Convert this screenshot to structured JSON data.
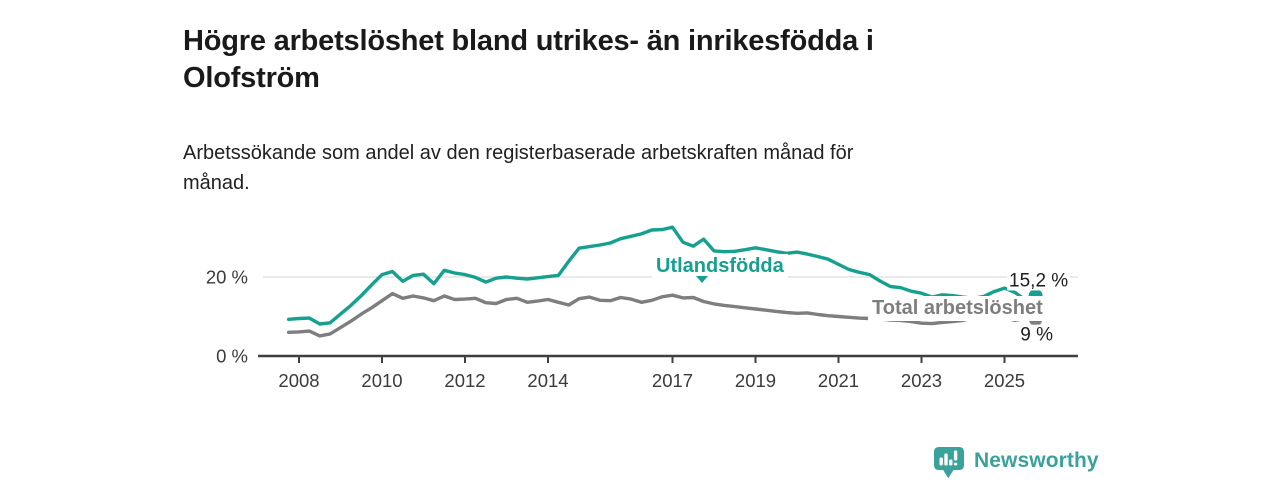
{
  "header": {
    "title_lines": [
      "Högre arbetslöshet bland utrikes- än inrikesfödda i",
      "Olofström"
    ],
    "subtitle_lines": [
      "Arbetssökande som andel av den registerbaserade arbetskraften månad för",
      "månad."
    ]
  },
  "chart_data": {
    "type": "line",
    "unit": "%",
    "x": [
      2007.75,
      2008.0,
      2008.25,
      2008.5,
      2008.75,
      2009.0,
      2009.25,
      2009.5,
      2009.75,
      2010.0,
      2010.25,
      2010.5,
      2010.75,
      2011.0,
      2011.25,
      2011.5,
      2011.75,
      2012.0,
      2012.25,
      2012.5,
      2012.75,
      2013.0,
      2013.25,
      2013.5,
      2013.75,
      2014.0,
      2014.25,
      2014.5,
      2014.75,
      2015.0,
      2015.25,
      2015.5,
      2015.75,
      2016.0,
      2016.25,
      2016.5,
      2016.75,
      2017.0,
      2017.25,
      2017.5,
      2017.75,
      2018.0,
      2018.25,
      2018.5,
      2018.75,
      2019.0,
      2019.25,
      2019.5,
      2019.75,
      2020.0,
      2020.25,
      2020.5,
      2020.75,
      2021.0,
      2021.25,
      2021.5,
      2021.75,
      2022.0,
      2022.25,
      2022.5,
      2022.75,
      2023.0,
      2023.25,
      2023.5,
      2023.75,
      2024.0,
      2024.25,
      2024.5,
      2024.75,
      2025.0,
      2025.25,
      2025.5,
      2025.75
    ],
    "series": [
      {
        "name": "Utlandsfödda",
        "color": "#16a090",
        "end_value_label": "15,2 %",
        "end_value": 15.2,
        "values": [
          9.3,
          9.5,
          9.6,
          8.1,
          8.4,
          10.6,
          12.8,
          15.3,
          18.0,
          20.6,
          21.4,
          18.9,
          20.4,
          20.7,
          18.3,
          21.7,
          21.0,
          20.6,
          19.9,
          18.7,
          19.7,
          20.0,
          19.7,
          19.5,
          19.8,
          20.1,
          20.4,
          24.0,
          27.3,
          27.7,
          28.1,
          28.6,
          29.7,
          30.3,
          30.9,
          31.9,
          32.0,
          32.6,
          28.8,
          27.8,
          29.6,
          26.6,
          26.4,
          26.5,
          26.9,
          27.4,
          26.9,
          26.4,
          26.0,
          26.3,
          25.8,
          25.2,
          24.5,
          23.2,
          21.9,
          21.2,
          20.6,
          19.0,
          17.6,
          17.3,
          16.4,
          15.9,
          14.9,
          15.5,
          15.3,
          14.9,
          14.6,
          15.1,
          16.3,
          17.2,
          16.1,
          14.2,
          15.2
        ]
      },
      {
        "name": "Total arbetslöshet",
        "color": "#7e7e7e",
        "end_value_label": "9 %",
        "end_value": 9.2,
        "values": [
          6.0,
          6.1,
          6.3,
          5.1,
          5.6,
          7.2,
          8.8,
          10.6,
          12.2,
          14.0,
          15.8,
          14.6,
          15.2,
          14.7,
          14.0,
          15.2,
          14.3,
          14.4,
          14.6,
          13.5,
          13.3,
          14.3,
          14.6,
          13.6,
          13.9,
          14.3,
          13.6,
          12.9,
          14.5,
          14.9,
          14.1,
          14.0,
          14.8,
          14.4,
          13.6,
          14.1,
          15.0,
          15.4,
          14.7,
          14.8,
          13.8,
          13.2,
          12.8,
          12.5,
          12.2,
          11.9,
          11.6,
          11.3,
          11.0,
          10.8,
          10.9,
          10.5,
          10.2,
          10.0,
          9.8,
          9.6,
          9.5,
          9.4,
          9.1,
          9.0,
          8.7,
          8.3,
          8.2,
          8.5,
          8.7,
          9.0,
          9.7,
          10.3,
          9.9,
          9.7,
          9.0,
          9.5,
          9.2
        ]
      }
    ],
    "xaxis": {
      "ticks": [
        {
          "value": 2008,
          "label": "2008"
        },
        {
          "value": 2010,
          "label": "2010"
        },
        {
          "value": 2012,
          "label": "2012"
        },
        {
          "value": 2014,
          "label": "2014"
        },
        {
          "value": 2017,
          "label": "2017"
        },
        {
          "value": 2019,
          "label": "2019"
        },
        {
          "value": 2021,
          "label": "2021"
        },
        {
          "value": 2023,
          "label": "2023"
        },
        {
          "value": 2025,
          "label": "2025"
        }
      ]
    },
    "yaxis": {
      "ticks": [
        {
          "value": 0,
          "label": "0 %"
        },
        {
          "value": 20,
          "label": "20 %"
        }
      ],
      "gridlines": [
        20
      ]
    },
    "ylim": [
      0,
      35
    ],
    "grid": "horizontal-only",
    "legend_position": "inline-labels"
  },
  "colors": {
    "accent_teal": "#16a090",
    "series_gray": "#7e7e7e",
    "axis": "#3f3f3f",
    "gridline": "#e4e4e4",
    "title_text": "#1a1a1a",
    "brand_teal": "#3aa29a"
  },
  "footer": {
    "brand": "Newsworthy"
  }
}
